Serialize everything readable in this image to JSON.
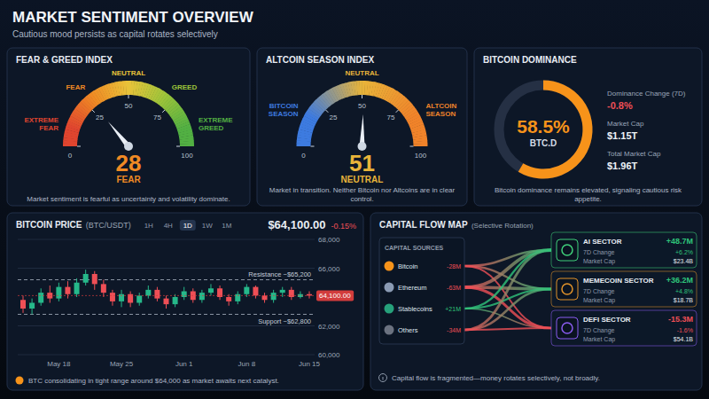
{
  "header": {
    "title": "MARKET SENTIMENT OVERVIEW",
    "subtitle": "Cautious mood persists as capital rotates selectively"
  },
  "chart_data": [
    {
      "type": "gauge",
      "title": "FEAR & GREED INDEX",
      "value": 28,
      "value_label": "FEAR",
      "ylim": [
        0,
        100
      ],
      "yticks": [
        0,
        25,
        50,
        75,
        100
      ],
      "categories": [
        "EXTREME FEAR",
        "FEAR",
        "NEUTRAL",
        "GREED",
        "EXTREME GREED"
      ],
      "colors": [
        "#e0452f",
        "#f08a24",
        "#e8c33a",
        "#9cc43a",
        "#52b043"
      ],
      "caption": "Market sentiment is fearful as uncertainty and volatility dominate."
    },
    {
      "type": "gauge",
      "title": "ALTCOIN SEASON INDEX",
      "value": 51,
      "value_label": "NEUTRAL",
      "ylim": [
        0,
        100
      ],
      "yticks": [
        0,
        25,
        50,
        75,
        100
      ],
      "categories": [
        "BITCOIN SEASON",
        "NEUTRAL",
        "ALTCOIN SEASON"
      ],
      "colors": [
        "#3d7be0",
        "#e8b43a",
        "#f0832a"
      ],
      "caption": "Market in transition. Neither Bitcoin nor Altcoins are in clear control."
    },
    {
      "type": "donut",
      "title": "BITCOIN DOMINANCE",
      "values": [
        58.5
      ],
      "value_labels": [
        "58.5%"
      ],
      "ylim": [
        0,
        100
      ],
      "center_label": "BTC.D",
      "color": "#f7931a",
      "stats": [
        {
          "label": "Dominance Change (7D)",
          "value": "-0.8%"
        },
        {
          "label": "Market Cap",
          "value": "$1.15T"
        },
        {
          "label": "Total Market Cap",
          "value": "$1.96T"
        }
      ],
      "caption": "Bitcoin dominance remains elevated, signaling cautious risk appetite."
    },
    {
      "type": "candlestick",
      "title": "BITCOIN PRICE",
      "subtitle": "(BTC/USDT)",
      "timeframes": [
        "1H",
        "4H",
        "1D",
        "1W",
        "1M"
      ],
      "selected": "1D",
      "price": "$64,100.00",
      "change": "-0.15%",
      "categories": [
        null,
        null,
        null,
        null,
        "May 18",
        null,
        null,
        null,
        null,
        null,
        null,
        "May 25",
        null,
        null,
        null,
        null,
        null,
        null,
        "Jun 1",
        null,
        null,
        null,
        null,
        null,
        null,
        "Jun 8",
        null,
        null,
        null,
        null,
        null,
        null,
        "Jun 15"
      ],
      "open": [
        63800,
        63200,
        63600,
        64300,
        63900,
        64700,
        64200,
        65000,
        65600,
        64900,
        64300,
        63700,
        64200,
        63600,
        64100,
        64500,
        63900,
        63500,
        64000,
        64400,
        63800,
        64300,
        64600,
        64000,
        63700,
        64200,
        64700,
        64100,
        63800,
        64300,
        64500,
        64000,
        64200
      ],
      "high": [
        64100,
        63900,
        64600,
        64800,
        65000,
        65100,
        65300,
        65900,
        65800,
        65200,
        64500,
        64500,
        64400,
        64300,
        64800,
        64700,
        64100,
        64200,
        64700,
        64600,
        64500,
        64900,
        64800,
        64200,
        64400,
        64900,
        64800,
        64300,
        64500,
        64700,
        64700,
        64400,
        64400
      ],
      "low": [
        62900,
        62800,
        63400,
        63600,
        63700,
        63900,
        64000,
        64800,
        64500,
        64000,
        63400,
        63300,
        63300,
        63400,
        63900,
        63700,
        63200,
        63300,
        63800,
        63600,
        63600,
        64100,
        63800,
        63400,
        63500,
        64000,
        63900,
        63600,
        63600,
        64000,
        63800,
        63900,
        63900
      ],
      "close": [
        63200,
        63600,
        64300,
        63900,
        64700,
        64200,
        65000,
        65600,
        64900,
        64300,
        63700,
        64200,
        63600,
        64100,
        64500,
        63900,
        63500,
        64000,
        64400,
        63800,
        64300,
        64600,
        64000,
        63700,
        64200,
        64700,
        64100,
        63800,
        64300,
        64500,
        64000,
        64200,
        64100
      ],
      "ylim": [
        60000,
        68000
      ],
      "yticks": [
        {
          "value": 60000,
          "label": "60,000"
        },
        {
          "value": 62000,
          "label": "62,000"
        },
        {
          "value": 66000,
          "label": "66,000"
        },
        {
          "value": 68000,
          "label": "68,000"
        }
      ],
      "grid": true,
      "levels": [
        {
          "name": "Resistance ~$65,200",
          "value": 65200
        },
        {
          "name": "Support ~$62,800",
          "value": 62800
        }
      ],
      "last_price": {
        "value": 64100,
        "label": "64,100.00"
      },
      "caption": "BTC consolidating in tight range around $64,000 as market awaits next catalyst."
    },
    {
      "type": "flow",
      "title": "CAPITAL FLOW MAP",
      "subtitle": "(Selective Rotation)",
      "sources": {
        "title": "CAPITAL SOURCES",
        "names": [
          "Bitcoin",
          "Ethereum",
          "Stablecoins",
          "Others"
        ],
        "values": [
          -28,
          -63,
          21,
          -34
        ],
        "value_labels": [
          "-28M",
          "-63M",
          "+21M",
          "-34M"
        ],
        "colors": [
          "#f7931a",
          "#8b9bb4",
          "#26a17b",
          "#6b7280"
        ]
      },
      "sectors": {
        "names": [
          "AI SECTOR",
          "MEMECOIN SECTOR",
          "DEFI SECTOR"
        ],
        "values": [
          48.7,
          36.2,
          -15.3
        ],
        "value_labels": [
          "+48.7M",
          "+36.2M",
          "-15.3M"
        ],
        "colors": [
          "#3fd07a",
          "#e0922a",
          "#8a5cf0"
        ],
        "change_label": "7D Change",
        "changes": [
          "+6.2%",
          "+4.8%",
          "-1.6%"
        ],
        "cap_label": "Market Cap",
        "caps": [
          "$23.4B",
          "$18.7B",
          "$54.1B"
        ]
      },
      "caption": "Capital flow is fragmented—money rotates selectively, not broadly."
    }
  ]
}
